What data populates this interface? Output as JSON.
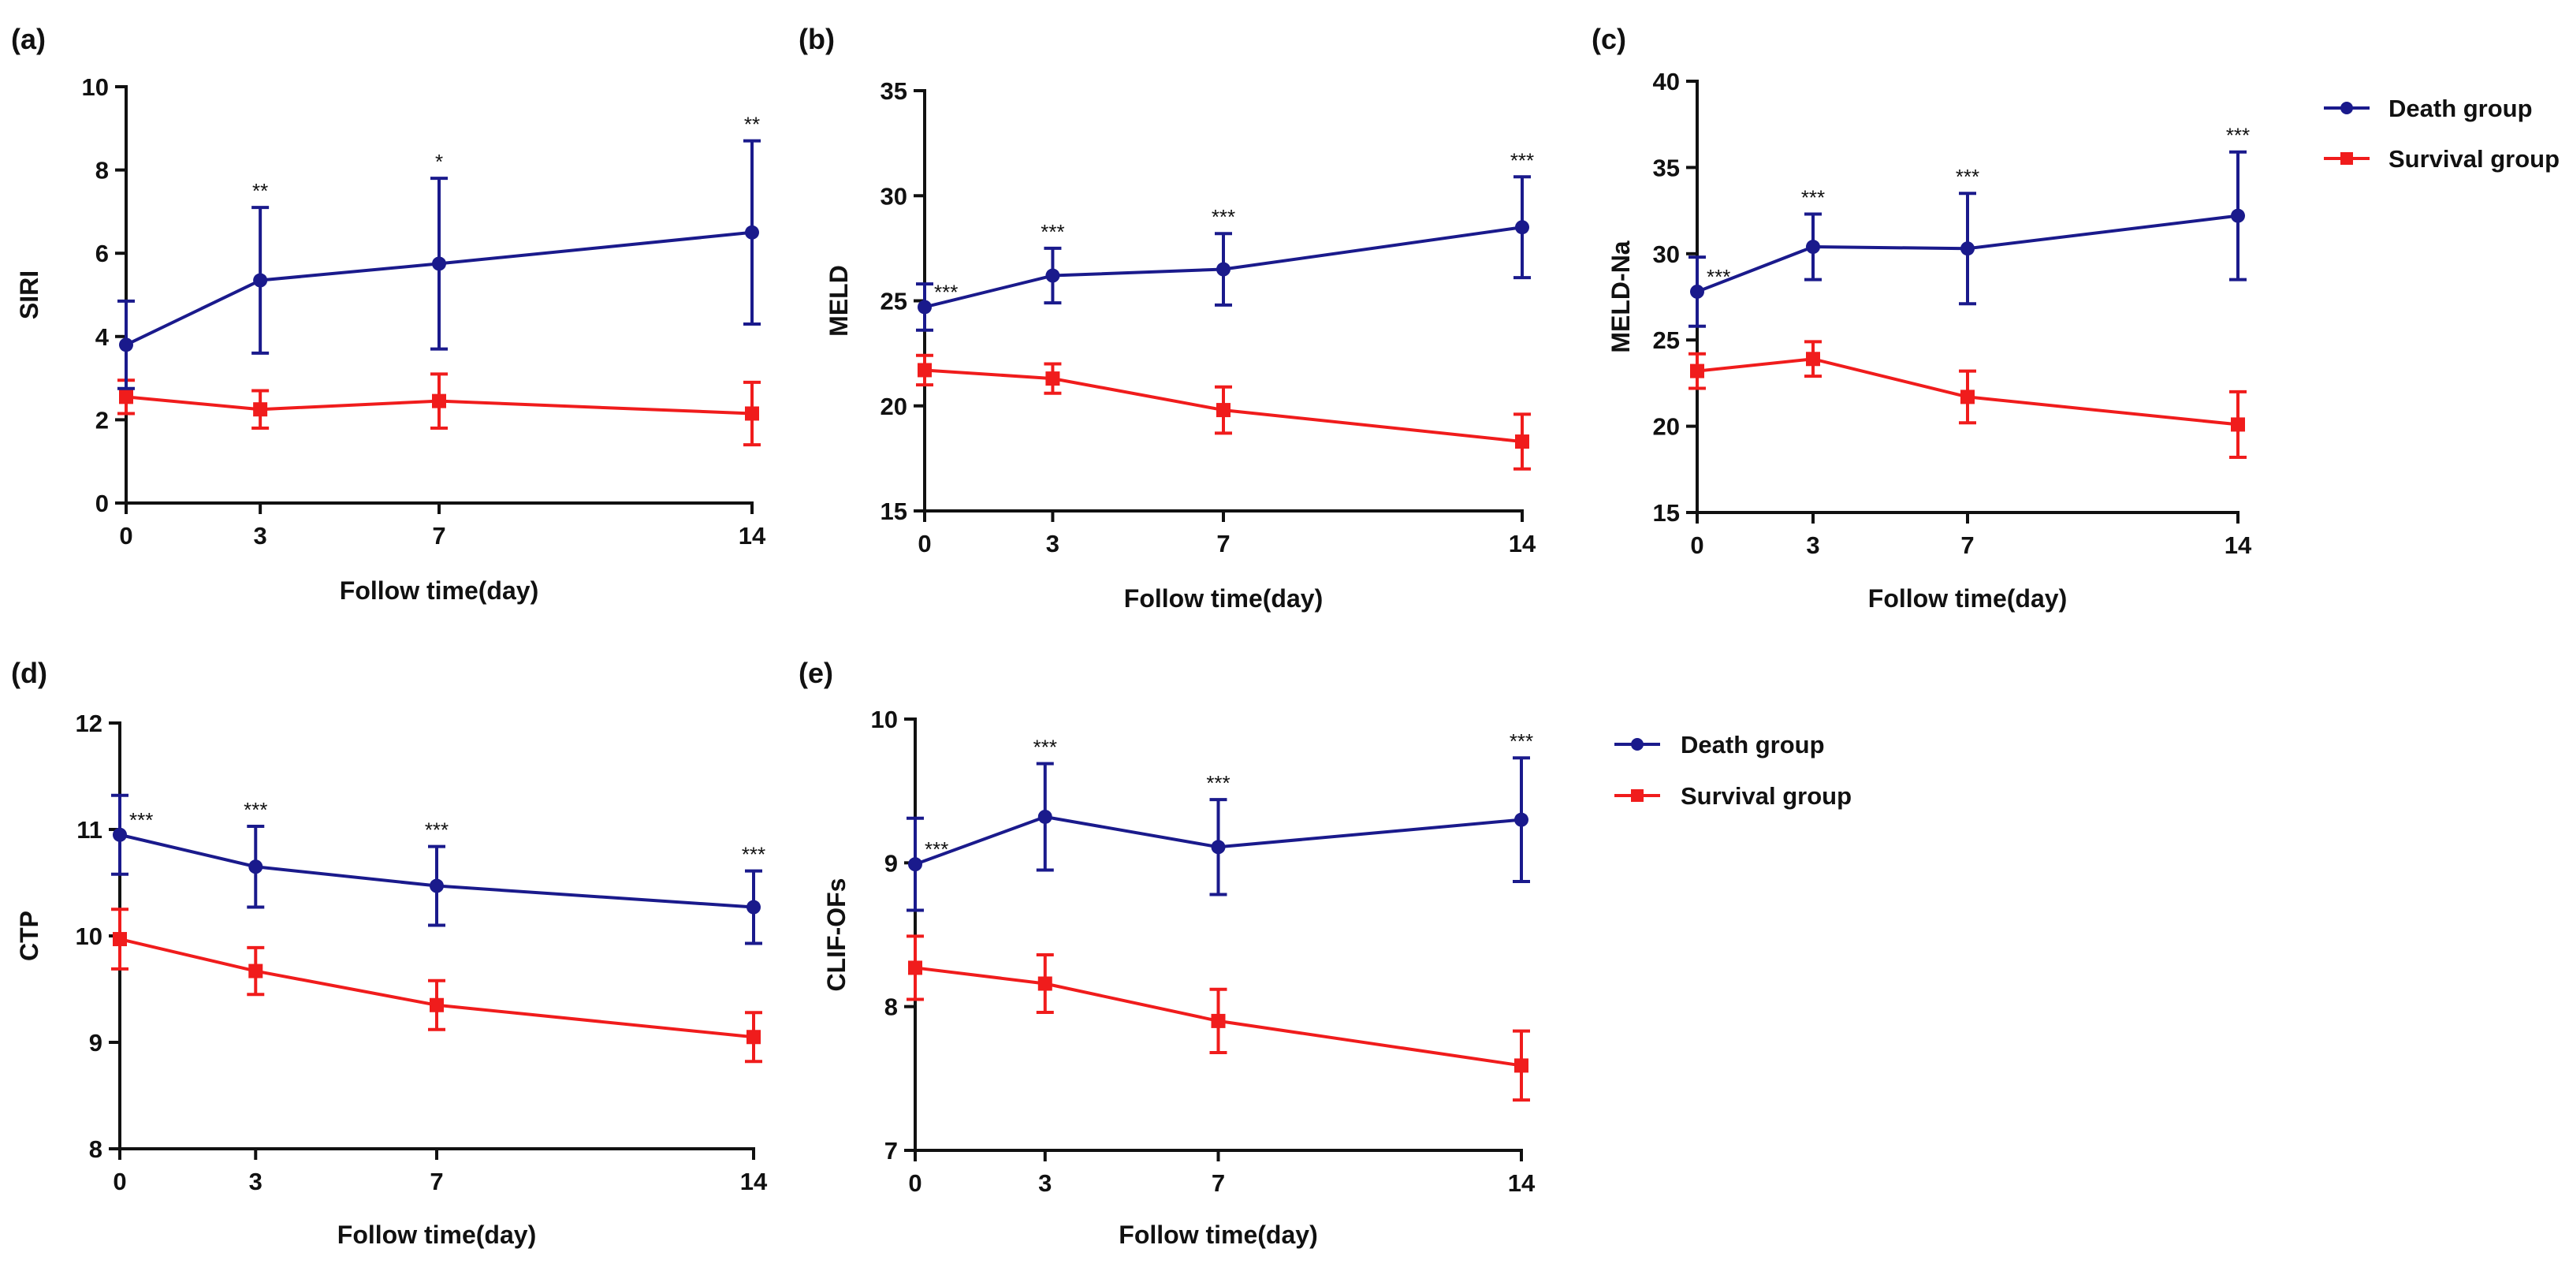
{
  "legend_groups": [
    {
      "entries": [
        {
          "label": "Death group"
        },
        {
          "label": "Survival group"
        }
      ]
    },
    {
      "entries": [
        {
          "label": "Death group"
        },
        {
          "label": "Survival group"
        }
      ]
    }
  ],
  "colors": {
    "death": "#1a1a8c",
    "survival": "#f01c1c",
    "axis": "#111111"
  },
  "chart_data": [
    {
      "panel": "(a)",
      "type": "line",
      "xlabel": "Follow time(day)",
      "ylabel": "SIRI",
      "x": [
        0,
        3,
        7,
        14
      ],
      "xlim": [
        0,
        14
      ],
      "ylim": [
        0,
        10
      ],
      "yticks": [
        0,
        2,
        4,
        6,
        8,
        10
      ],
      "series": [
        {
          "name": "Death group",
          "values": [
            3.8,
            5.35,
            5.75,
            6.5
          ],
          "err": [
            1.05,
            1.75,
            2.05,
            2.2
          ]
        },
        {
          "name": "Survival group",
          "values": [
            2.55,
            2.25,
            2.45,
            2.15
          ],
          "err": [
            0.4,
            0.45,
            0.65,
            0.75
          ]
        }
      ],
      "annotations": [
        "",
        "**",
        "*",
        "**"
      ]
    },
    {
      "panel": "(b)",
      "type": "line",
      "xlabel": "Follow time(day)",
      "ylabel": "MELD",
      "x": [
        0,
        3,
        7,
        14
      ],
      "xlim": [
        0,
        14
      ],
      "ylim": [
        15,
        35
      ],
      "yticks": [
        15,
        20,
        25,
        30,
        35
      ],
      "series": [
        {
          "name": "Death group",
          "values": [
            24.7,
            26.2,
            26.5,
            28.5
          ],
          "err": [
            1.1,
            1.3,
            1.7,
            2.4
          ]
        },
        {
          "name": "Survival group",
          "values": [
            21.7,
            21.3,
            19.8,
            18.3
          ],
          "err": [
            0.7,
            0.7,
            1.1,
            1.3
          ]
        }
      ],
      "annotations": [
        "***",
        "***",
        "***",
        "***"
      ]
    },
    {
      "panel": "(c)",
      "type": "line",
      "xlabel": "Follow time(day)",
      "ylabel": "MELD-Na",
      "x": [
        0,
        3,
        7,
        14
      ],
      "xlim": [
        0,
        14
      ],
      "ylim": [
        15,
        40
      ],
      "yticks": [
        15,
        20,
        25,
        30,
        35,
        40
      ],
      "series": [
        {
          "name": "Death group",
          "values": [
            27.8,
            30.4,
            30.3,
            32.2
          ],
          "err": [
            2.0,
            1.9,
            3.2,
            3.7
          ]
        },
        {
          "name": "Survival group",
          "values": [
            23.2,
            23.9,
            21.7,
            20.1
          ],
          "err": [
            1.0,
            1.0,
            1.5,
            1.9
          ]
        }
      ],
      "annotations": [
        "***",
        "***",
        "***",
        "***"
      ]
    },
    {
      "panel": "(d)",
      "type": "line",
      "xlabel": "Follow time(day)",
      "ylabel": "CTP",
      "x": [
        0,
        3,
        7,
        14
      ],
      "xlim": [
        0,
        14
      ],
      "ylim": [
        8,
        12
      ],
      "yticks": [
        8,
        9,
        10,
        11,
        12
      ],
      "series": [
        {
          "name": "Death group",
          "values": [
            10.95,
            10.65,
            10.47,
            10.27
          ],
          "err": [
            0.37,
            0.38,
            0.37,
            0.34
          ]
        },
        {
          "name": "Survival group",
          "values": [
            9.97,
            9.67,
            9.35,
            9.05
          ],
          "err": [
            0.28,
            0.22,
            0.23,
            0.23
          ]
        }
      ],
      "annotations": [
        "***",
        "***",
        "***",
        "***"
      ]
    },
    {
      "panel": "(e)",
      "type": "line",
      "xlabel": "Follow time(day)",
      "ylabel": "CLIF-OFs",
      "x": [
        0,
        3,
        7,
        14
      ],
      "xlim": [
        0,
        14
      ],
      "ylim": [
        7,
        10
      ],
      "yticks": [
        7,
        8,
        9,
        10
      ],
      "series": [
        {
          "name": "Death group",
          "values": [
            8.99,
            9.32,
            9.11,
            9.3
          ],
          "err": [
            0.32,
            0.37,
            0.33,
            0.43
          ]
        },
        {
          "name": "Survival group",
          "values": [
            8.27,
            8.16,
            7.9,
            7.59
          ],
          "err": [
            0.22,
            0.2,
            0.22,
            0.24
          ]
        }
      ],
      "annotations": [
        "***",
        "***",
        "***",
        "***"
      ]
    }
  ]
}
